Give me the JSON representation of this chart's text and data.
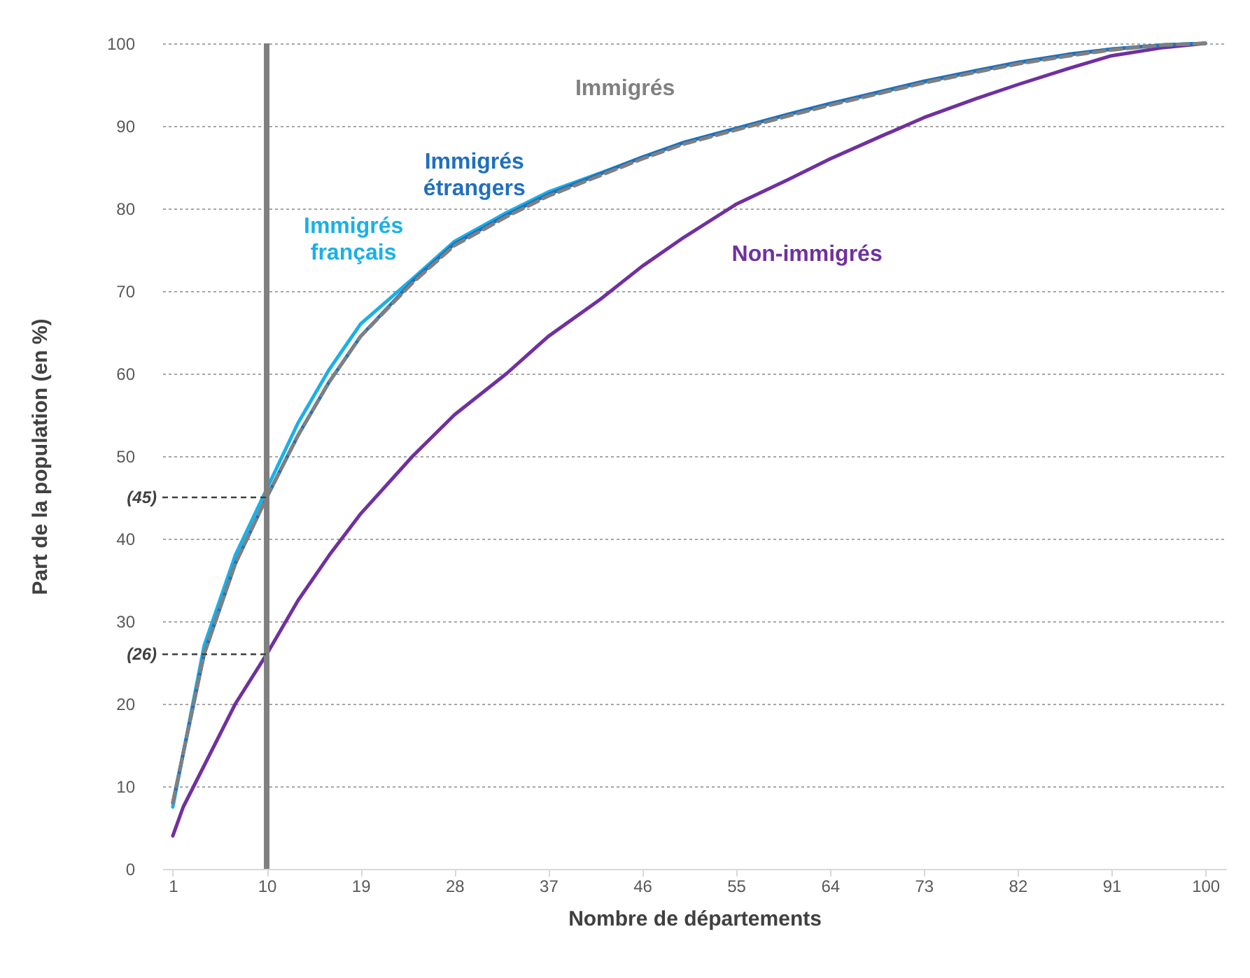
{
  "chart_data": {
    "type": "line",
    "xlabel": "Nombre de départements",
    "ylabel": "Part de la population (en %)",
    "x": [
      1,
      2,
      4,
      7,
      10,
      13,
      16,
      19,
      24,
      28,
      33,
      37,
      42,
      46,
      50,
      55,
      60,
      64,
      69,
      73,
      78,
      82,
      87,
      91,
      96,
      100
    ],
    "series": [
      {
        "name": "Non-immigrés",
        "color": "#7030a0",
        "line_style": "solid",
        "values": [
          4,
          7.5,
          12.5,
          20,
          26,
          32.5,
          38,
          43,
          50,
          55,
          60,
          64.5,
          69,
          73,
          76.5,
          80.5,
          83.5,
          86,
          88.8,
          91,
          93.3,
          95,
          97,
          98.5,
          99.5,
          100
        ]
      },
      {
        "name": "Immigrés français",
        "color": "#1ab0e8",
        "line_style": "solid",
        "values": [
          7.5,
          14,
          27,
          38,
          46,
          54,
          60.5,
          66,
          71.5,
          76,
          79.5,
          82,
          84.3,
          86.2,
          88,
          89.7,
          91.4,
          92.7,
          94.1,
          95.3,
          96.6,
          97.6,
          98.6,
          99.3,
          99.8,
          100
        ]
      },
      {
        "name": "Immigrés étrangers",
        "color": "#1f6fc0",
        "line_style": "solid",
        "values": [
          8,
          14,
          26,
          37,
          45,
          52.5,
          59,
          64.5,
          71.2,
          75.7,
          79.2,
          81.7,
          84.2,
          86.2,
          88,
          89.7,
          91.4,
          92.7,
          94.2,
          95.4,
          96.7,
          97.7,
          98.7,
          99.3,
          99.8,
          100
        ]
      },
      {
        "name": "Immigrés",
        "color": "#808080",
        "line_style": "dashed",
        "values": [
          8,
          14,
          26,
          37,
          45,
          52.5,
          59,
          64.5,
          71,
          75.5,
          79,
          81.5,
          84,
          86,
          87.8,
          89.5,
          91.2,
          92.5,
          94,
          95.2,
          96.5,
          97.5,
          98.5,
          99.2,
          99.8,
          100
        ]
      }
    ],
    "xlim": [
      0,
      102
    ],
    "xticks": [
      1,
      10,
      19,
      28,
      37,
      46,
      55,
      64,
      73,
      82,
      91,
      100
    ],
    "ylim": [
      0,
      100
    ],
    "yticks": [
      0,
      10,
      20,
      30,
      40,
      50,
      60,
      70,
      80,
      90,
      100
    ],
    "grid": "y",
    "legend": false,
    "marker": "none",
    "ref_lines": [
      {
        "axis": "x",
        "value": 10,
        "color": "#7f7f7f"
      }
    ],
    "annotations": [
      {
        "text": "(45)",
        "x": 10,
        "y": 45
      },
      {
        "text": "(26)",
        "x": 10,
        "y": 26
      }
    ]
  }
}
